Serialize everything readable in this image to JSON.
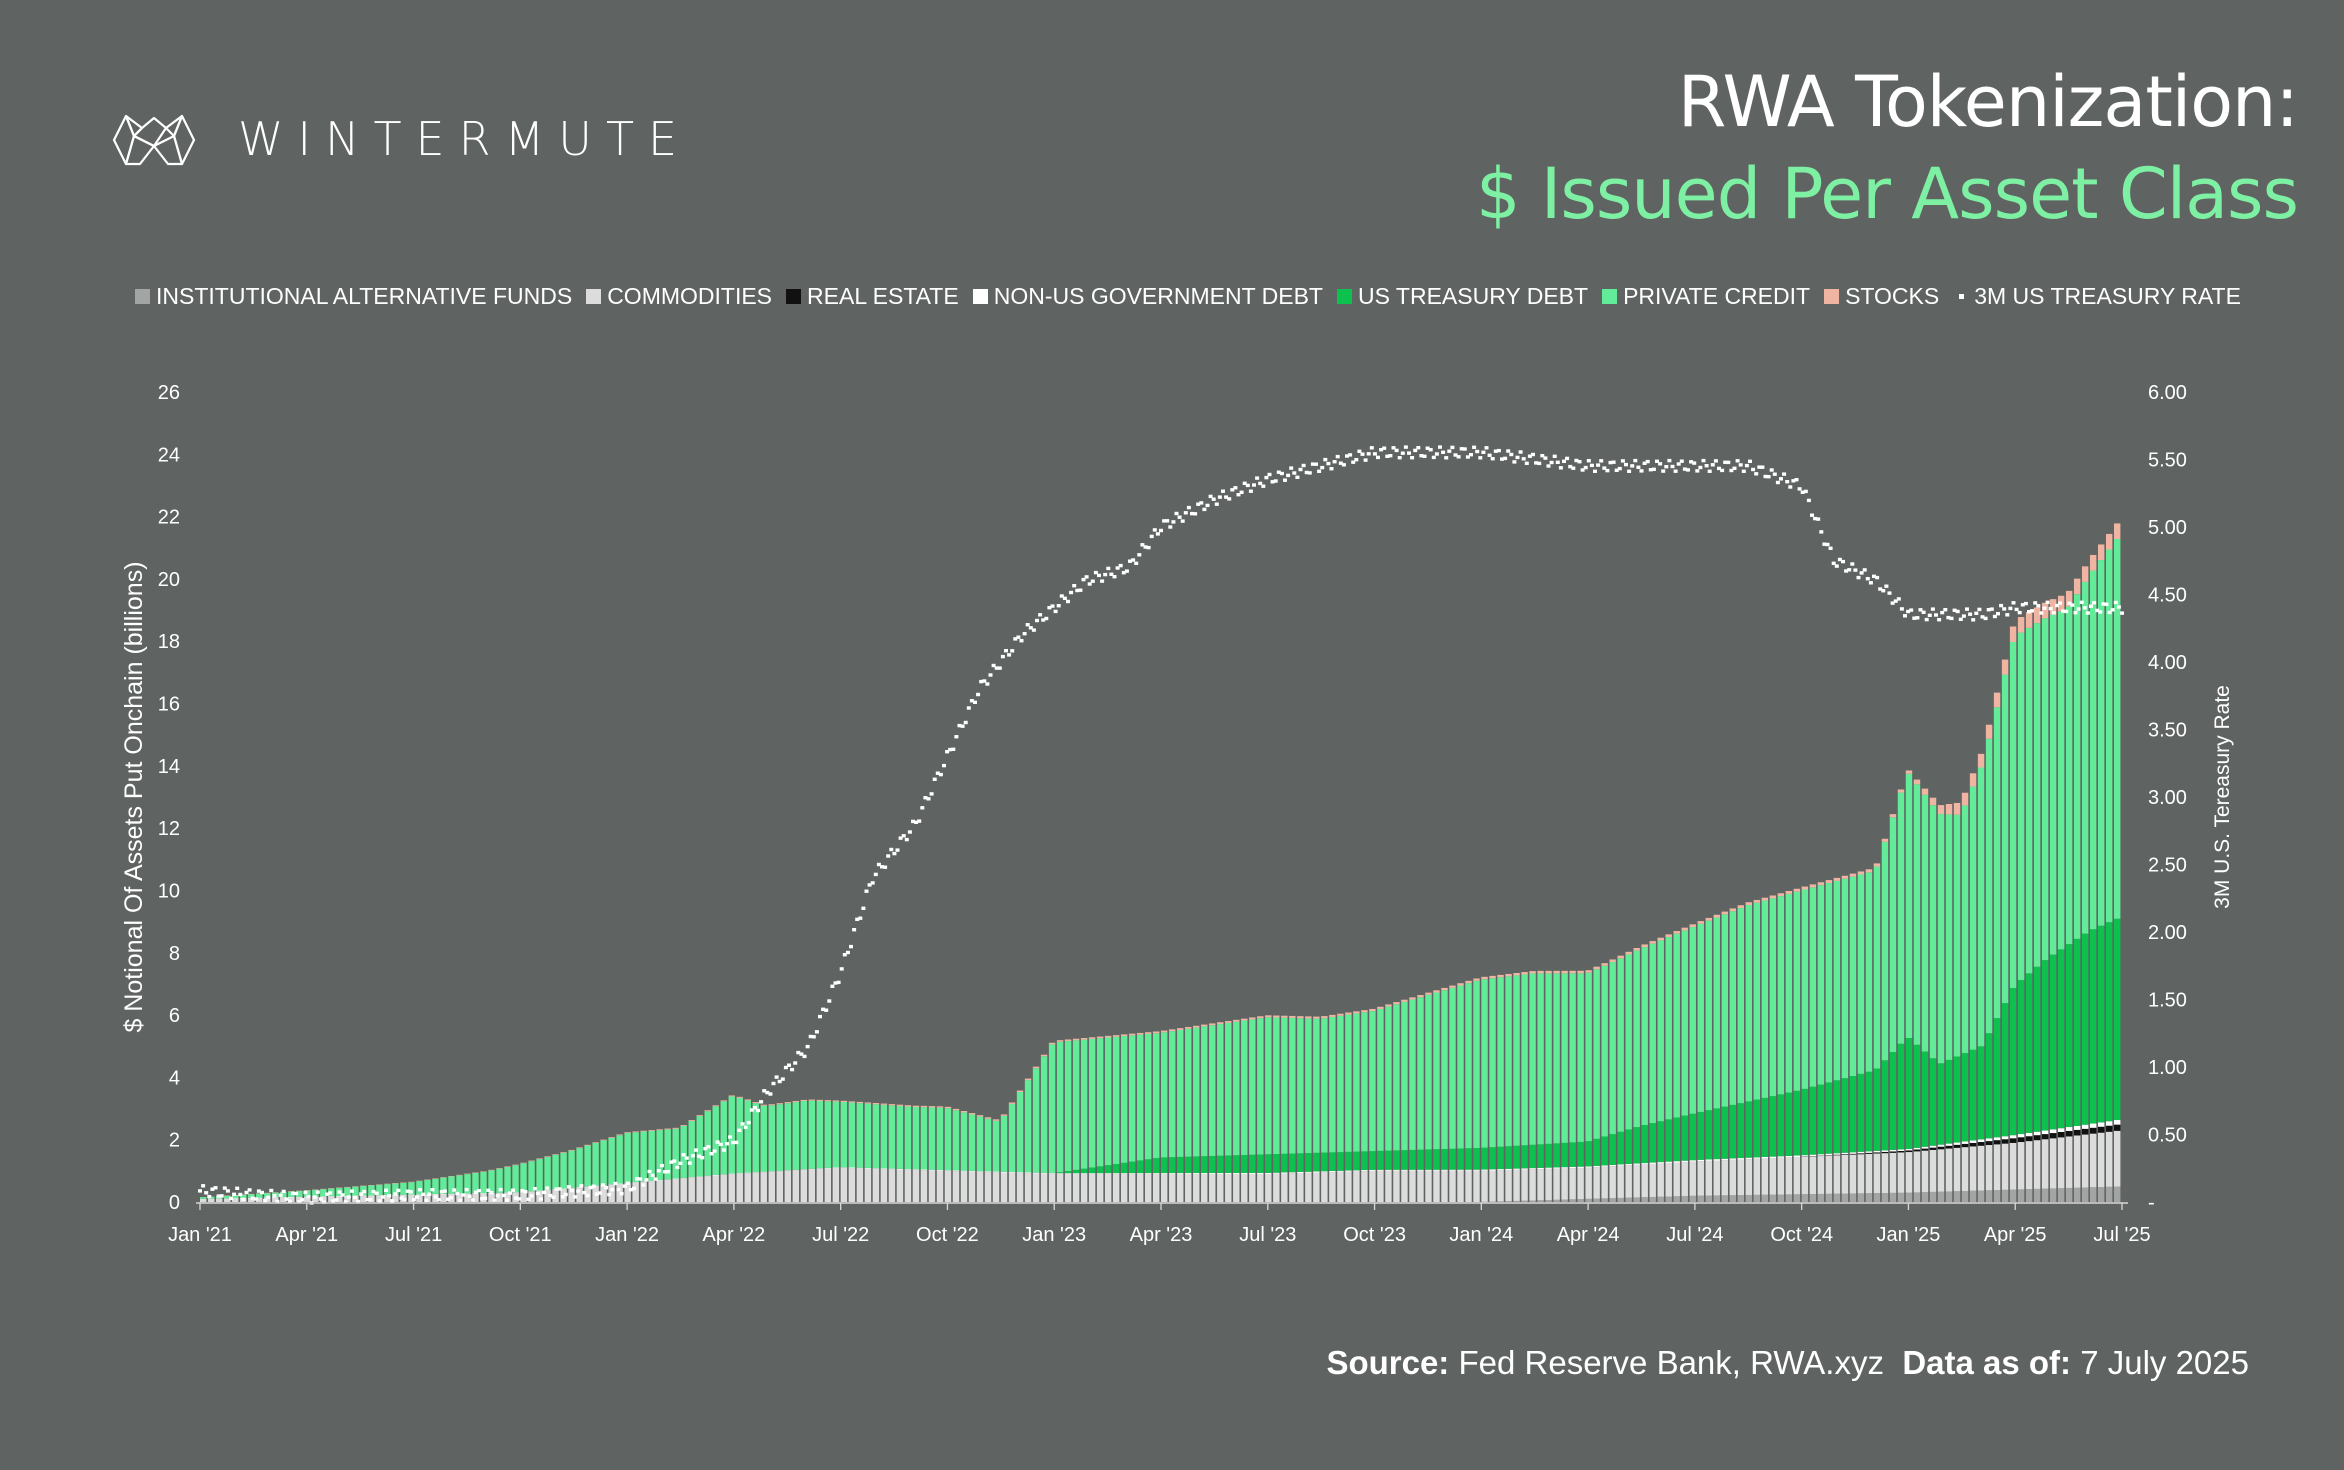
{
  "brand": {
    "name": "WINTERMUTE"
  },
  "title": {
    "line1": "RWA Tokenization:",
    "line2": "$ Issued Per Asset Class"
  },
  "colors": {
    "background": "#5f6462",
    "accent": "#7ef0a3",
    "private_credit": "#62eb98",
    "us_treasury": "#0dc14e",
    "stocks": "#f0b4a2",
    "commodities": "#dcdcdc",
    "institutional_funds": "#a3a5a4",
    "real_estate": "#111111",
    "non_us_gov": "#ffffff"
  },
  "source": {
    "label": "Source:",
    "value": "Fed Reserve Bank, RWA.xyz",
    "date_label": "Data as of:",
    "date_value": "7 July 2025"
  },
  "chart_data": {
    "type": "bar",
    "stacked": true,
    "legend_position": "top",
    "grid": false,
    "legend": [
      {
        "name": "INSTITUTIONAL ALTERNATIVE FUNDS",
        "color": "#a3a5a4"
      },
      {
        "name": "COMMODITIES",
        "color": "#dcdcdc"
      },
      {
        "name": "REAL ESTATE",
        "color": "#111111"
      },
      {
        "name": "NON-US GOVERNMENT DEBT",
        "color": "#ffffff"
      },
      {
        "name": "US TREASURY DEBT",
        "color": "#0dc14e"
      },
      {
        "name": "PRIVATE CREDIT",
        "color": "#62eb98"
      },
      {
        "name": "STOCKS",
        "color": "#f0b4a2"
      },
      {
        "name": "3M US TREASURY RATE",
        "color": "#ffffff",
        "marker": "dot"
      }
    ],
    "ylabel": "$ Notional Of Assets Put Onchain (billions)",
    "y2label": "3M U.S. Tereasury Rate",
    "ylim": [
      0,
      26
    ],
    "y2lim": [
      0,
      6
    ],
    "yticks": [
      "0",
      "2",
      "4",
      "6",
      "8",
      "10",
      "12",
      "14",
      "16",
      "18",
      "20",
      "22",
      "24",
      "26"
    ],
    "y2ticks": [
      "-",
      "0.50",
      "1.00",
      "1.50",
      "2.00",
      "2.50",
      "3.00",
      "3.50",
      "4.00",
      "4.50",
      "5.00",
      "5.50",
      "6.00"
    ],
    "xticks": [
      "Jan '21",
      "Apr '21",
      "Jul '21",
      "Oct '21",
      "Jan '22",
      "Apr '22",
      "Jul '22",
      "Oct '22",
      "Jan '23",
      "Apr '23",
      "Jul '23",
      "Oct '23",
      "Jan '24",
      "Apr '24",
      "Jul '24",
      "Oct '24",
      "Jan '25",
      "Apr '25",
      "Jul '25"
    ],
    "series": [
      {
        "name": "INSTITUTIONAL ALTERNATIVE FUNDS",
        "t": [
          0,
          12,
          13,
          14,
          15,
          16,
          17,
          18
        ],
        "values": [
          0.0,
          0.0,
          0.1,
          0.2,
          0.25,
          0.3,
          0.4,
          0.5
        ]
      },
      {
        "name": "COMMODITIES",
        "t": [
          0,
          3,
          5,
          6,
          7,
          8,
          9,
          10,
          11,
          12,
          13,
          14,
          15,
          16,
          17,
          18
        ],
        "values": [
          0.1,
          0.3,
          0.9,
          1.1,
          1.0,
          0.9,
          0.9,
          0.9,
          1.0,
          1.0,
          1.0,
          1.1,
          1.2,
          1.3,
          1.5,
          1.8
        ]
      },
      {
        "name": "REAL ESTATE",
        "t": [
          0,
          15,
          16,
          16.5,
          17,
          18
        ],
        "values": [
          0.0,
          0.0,
          0.05,
          0.1,
          0.15,
          0.2
        ]
      },
      {
        "name": "NON-US GOVERNMENT DEBT",
        "t": [
          0,
          16,
          17,
          18
        ],
        "values": [
          0.0,
          0.05,
          0.1,
          0.15
        ]
      },
      {
        "name": "US TREASURY DEBT",
        "t": [
          0,
          8,
          9,
          10,
          11,
          12,
          13,
          13.5,
          14,
          15,
          15.7,
          16,
          16.3,
          16.7,
          17,
          17.3,
          17.7,
          18
        ],
        "values": [
          0.0,
          0.0,
          0.5,
          0.6,
          0.6,
          0.7,
          0.8,
          1.2,
          1.5,
          2.1,
          2.6,
          3.6,
          2.6,
          3.0,
          4.8,
          5.5,
          6.2,
          6.5
        ]
      },
      {
        "name": "PRIVATE CREDIT",
        "t": [
          0,
          1,
          2,
          2.7,
          3,
          3.5,
          4,
          4.5,
          5,
          5.3,
          5.7,
          6,
          6.7,
          7,
          7.5,
          8,
          9,
          10,
          10.5,
          11,
          12,
          12.5,
          13,
          13.2,
          14,
          14.5,
          15,
          15.7,
          16,
          16.5,
          16.8,
          17,
          17.5,
          18
        ],
        "values": [
          0.05,
          0.2,
          0.4,
          0.7,
          0.9,
          1.2,
          1.6,
          1.6,
          2.5,
          2.1,
          2.2,
          2.1,
          2.0,
          2.0,
          1.6,
          4.2,
          4.0,
          4.4,
          4.3,
          4.5,
          5.4,
          5.5,
          5.4,
          5.5,
          6.0,
          6.3,
          6.4,
          6.4,
          8.5,
          7.7,
          9.7,
          11.2,
          10.8,
          12.3
        ]
      },
      {
        "name": "STOCKS",
        "t": [
          0,
          16,
          16.5,
          17,
          18
        ],
        "values": [
          0.0,
          0.1,
          0.4,
          0.5,
          0.5
        ]
      }
    ],
    "rate_series": {
      "name": "3M US TREASURY RATE",
      "t": [
        0,
        0.5,
        1,
        2,
        3,
        4,
        4.5,
        5,
        5.3,
        5.7,
        6,
        6.3,
        6.5,
        6.7,
        7,
        7.3,
        7.7,
        8,
        8.3,
        8.7,
        9,
        9.5,
        10,
        10.5,
        11,
        11.5,
        12,
        12.5,
        13,
        13.5,
        14,
        14.5,
        15,
        15.3,
        15.7,
        16,
        16.3,
        16.7,
        17,
        17.5,
        18
      ],
      "values": [
        0.08,
        0.05,
        0.03,
        0.05,
        0.05,
        0.1,
        0.3,
        0.45,
        0.8,
        1.15,
        1.7,
        2.4,
        2.6,
        2.8,
        3.3,
        3.8,
        4.2,
        4.4,
        4.6,
        4.7,
        5.0,
        5.2,
        5.35,
        5.45,
        5.55,
        5.55,
        5.55,
        5.5,
        5.45,
        5.45,
        5.45,
        5.45,
        5.3,
        4.75,
        4.6,
        4.35,
        4.35,
        4.35,
        4.4,
        4.4,
        4.4
      ]
    }
  }
}
